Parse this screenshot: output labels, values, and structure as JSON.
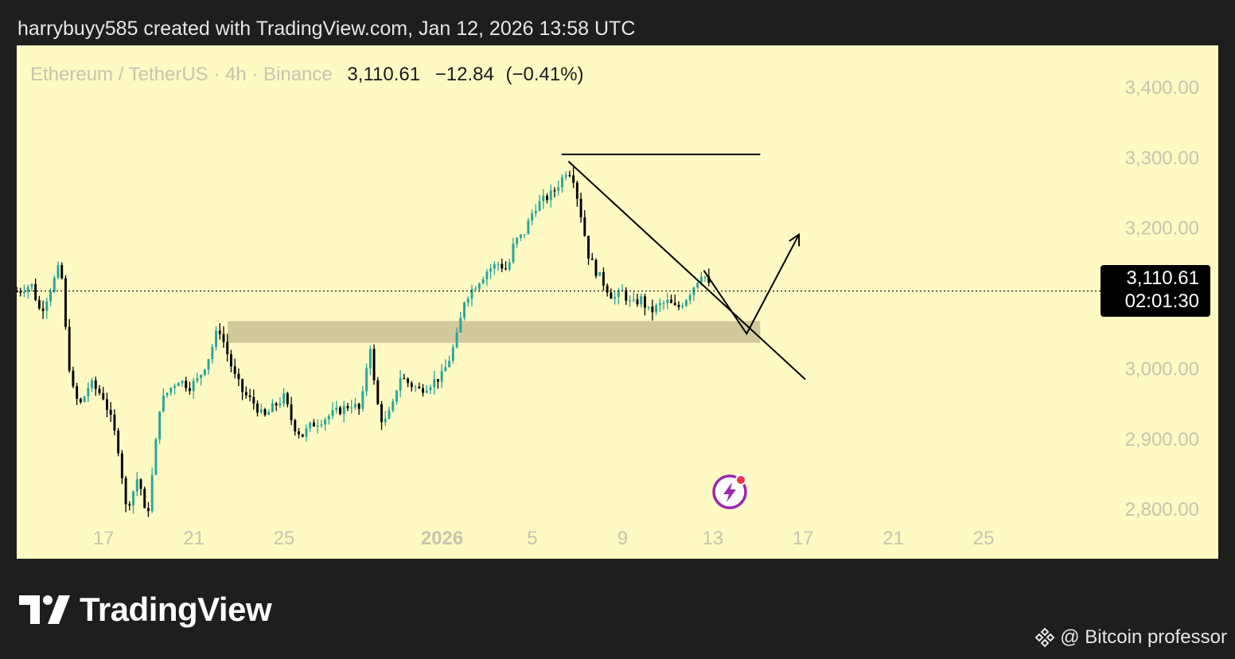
{
  "header": {
    "text": "harrybuyy585 created with TradingView.com, Jan 12, 2026 13:58 UTC"
  },
  "legend": {
    "symbol": "Ethereum / TetherUS · 4h · Binance",
    "price": "3,110.61",
    "change": "−12.84",
    "change_pct": "(−0.41%)"
  },
  "price_box": {
    "price": "3,110.61",
    "countdown": "02:01:30"
  },
  "brand": {
    "logo_text": "TradingView"
  },
  "credit": {
    "text": "@ Bitcoin professor",
    "icon": "binance-icon"
  },
  "colors": {
    "background": "#fff9c4",
    "bullish": "#26a69a",
    "bearish": "#000000",
    "zone": "#c9c194",
    "axis_text": "#c8c4ae",
    "page": "#1e1e1e",
    "alert_icon": "#9c27b0"
  },
  "chart_data": {
    "type": "candlestick",
    "symbol": "ETHUSDT",
    "timeframe": "4h",
    "exchange": "Binance",
    "ylim": [
      2730,
      3460
    ],
    "y_ticks": [
      {
        "value": 3400,
        "label": "3,400.00"
      },
      {
        "value": 3300,
        "label": "3,300.00"
      },
      {
        "value": 3200,
        "label": "3,200.00"
      },
      {
        "value": 3000,
        "label": "3,000.00"
      },
      {
        "value": 2900,
        "label": "2,900.00"
      },
      {
        "value": 2800,
        "label": "2,800.00"
      }
    ],
    "x_range_days": [
      -18.85,
      27.7
    ],
    "x_ticks": [
      {
        "day": -15,
        "label": "17",
        "bold": false
      },
      {
        "day": -11,
        "label": "21",
        "bold": false
      },
      {
        "day": -7,
        "label": "25",
        "bold": false
      },
      {
        "day": 0,
        "label": "2026",
        "bold": true
      },
      {
        "day": 4,
        "label": "5",
        "bold": false
      },
      {
        "day": 8,
        "label": "9",
        "bold": false
      },
      {
        "day": 12,
        "label": "13",
        "bold": false
      },
      {
        "day": 16,
        "label": "17",
        "bold": false
      },
      {
        "day": 20,
        "label": "21",
        "bold": false
      },
      {
        "day": 24,
        "label": "25",
        "bold": false
      }
    ],
    "current_price": 3110.61,
    "candles_start_day": -18.85,
    "candle_interval_days": 0.1667,
    "anchors": [
      [
        -18.85,
        3110
      ],
      [
        -18.2,
        3120
      ],
      [
        -17.8,
        3080
      ],
      [
        -17.4,
        3110
      ],
      [
        -16.9,
        3150
      ],
      [
        -16.6,
        3020
      ],
      [
        -16.3,
        2960
      ],
      [
        -16.0,
        2950
      ],
      [
        -15.6,
        2980
      ],
      [
        -15.0,
        2960
      ],
      [
        -14.6,
        2920
      ],
      [
        -14.3,
        2880
      ],
      [
        -14.0,
        2800
      ],
      [
        -13.7,
        2825
      ],
      [
        -13.45,
        2850
      ],
      [
        -13.1,
        2780
      ],
      [
        -12.8,
        2860
      ],
      [
        -12.5,
        2950
      ],
      [
        -12.1,
        2970
      ],
      [
        -11.7,
        2985
      ],
      [
        -11.2,
        2975
      ],
      [
        -10.8,
        2985
      ],
      [
        -10.3,
        3020
      ],
      [
        -9.9,
        3060
      ],
      [
        -9.6,
        3030
      ],
      [
        -9.2,
        2990
      ],
      [
        -8.8,
        2965
      ],
      [
        -8.3,
        2950
      ],
      [
        -7.9,
        2930
      ],
      [
        -7.5,
        2945
      ],
      [
        -7.0,
        2960
      ],
      [
        -6.6,
        2920
      ],
      [
        -6.2,
        2905
      ],
      [
        -5.8,
        2920
      ],
      [
        -5.2,
        2930
      ],
      [
        -4.6,
        2940
      ],
      [
        -4.0,
        2950
      ],
      [
        -3.6,
        2940
      ],
      [
        -3.2,
        3040
      ],
      [
        -2.95,
        2960
      ],
      [
        -2.6,
        2920
      ],
      [
        -2.2,
        2945
      ],
      [
        -1.9,
        2990
      ],
      [
        -1.5,
        2980
      ],
      [
        -1.0,
        2970
      ],
      [
        -0.5,
        2980
      ],
      [
        0.0,
        2990
      ],
      [
        0.4,
        3020
      ],
      [
        0.7,
        3050
      ],
      [
        1.0,
        3100
      ],
      [
        1.5,
        3120
      ],
      [
        2.0,
        3140
      ],
      [
        2.5,
        3150
      ],
      [
        2.9,
        3140
      ],
      [
        3.2,
        3180
      ],
      [
        3.6,
        3190
      ],
      [
        4.1,
        3230
      ],
      [
        4.5,
        3240
      ],
      [
        4.9,
        3250
      ],
      [
        5.3,
        3270
      ],
      [
        5.55,
        3285
      ],
      [
        5.8,
        3275
      ],
      [
        6.15,
        3220
      ],
      [
        6.5,
        3160
      ],
      [
        6.8,
        3140
      ],
      [
        7.2,
        3120
      ],
      [
        7.6,
        3100
      ],
      [
        8.0,
        3110
      ],
      [
        8.4,
        3090
      ],
      [
        8.8,
        3100
      ],
      [
        9.2,
        3080
      ],
      [
        9.6,
        3090
      ],
      [
        10.0,
        3095
      ],
      [
        10.4,
        3085
      ],
      [
        10.8,
        3100
      ],
      [
        11.2,
        3120
      ],
      [
        11.55,
        3140
      ],
      [
        11.9,
        3111
      ]
    ],
    "drawings": {
      "support_zone": {
        "x1_day": -9.5,
        "x2_day": 14.1,
        "y_low": 3037,
        "y_high": 3068
      },
      "resistance_line": {
        "x1_day": 5.3,
        "x2_day": 14.1,
        "y": 3305
      },
      "trendline": {
        "x1_day": 5.6,
        "y1": 3295,
        "x2_day": 16.1,
        "y2": 2985
      },
      "projected_path": [
        [
          11.6,
          3140
        ],
        [
          13.5,
          3050
        ],
        [
          15.8,
          3190
        ]
      ]
    }
  }
}
